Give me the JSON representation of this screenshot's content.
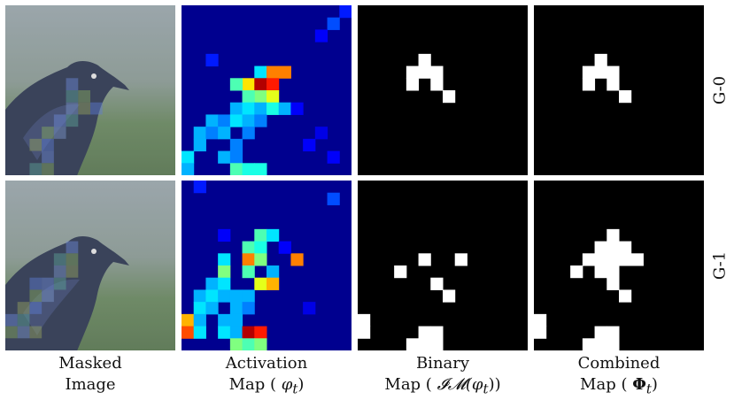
{
  "captions": [
    {
      "line1": "Masked",
      "line2": "Image"
    },
    {
      "line1": "Activation",
      "line2_prefix": "Map (",
      "symbol": "φ",
      "sub": "t",
      "line2_suffix": ")"
    },
    {
      "line1": "Binary",
      "line2_prefix": "Map (",
      "symbol": "𝓘𝓜(φ",
      "sub": "t",
      "line2_suffix": "))"
    },
    {
      "line1": "Combined",
      "line2_prefix": "Map (",
      "symbol": "Φ",
      "sub": "t",
      "line2_suffix": ")"
    }
  ],
  "rows": [
    {
      "label": "G-0",
      "overlay": [
        [
          5,
          6
        ],
        [
          5,
          7
        ],
        [
          6,
          7
        ],
        [
          5,
          8
        ],
        [
          6,
          8
        ],
        [
          7,
          8
        ],
        [
          4,
          9
        ],
        [
          5,
          9
        ],
        [
          3,
          10
        ],
        [
          4,
          10
        ],
        [
          2,
          11
        ],
        [
          3,
          11
        ],
        [
          3,
          12
        ],
        [
          2,
          13
        ],
        [
          3,
          13
        ]
      ],
      "activation": [
        [
          13,
          0,
          0.15
        ],
        [
          12,
          1,
          0.2
        ],
        [
          2,
          4,
          0.15
        ],
        [
          11,
          2,
          0.12
        ],
        [
          6,
          5,
          0.35
        ],
        [
          7,
          5,
          0.75
        ],
        [
          8,
          5,
          0.75
        ],
        [
          5,
          6,
          0.65
        ],
        [
          6,
          6,
          0.95
        ],
        [
          7,
          6,
          0.85
        ],
        [
          4,
          6,
          0.45
        ],
        [
          6,
          7,
          0.5
        ],
        [
          7,
          7,
          0.6
        ],
        [
          5,
          7,
          0.45
        ],
        [
          4,
          8,
          0.3
        ],
        [
          5,
          8,
          0.35
        ],
        [
          6,
          8,
          0.3
        ],
        [
          7,
          8,
          0.4
        ],
        [
          8,
          8,
          0.3
        ],
        [
          2,
          9,
          0.3
        ],
        [
          3,
          9,
          0.25
        ],
        [
          4,
          9,
          0.35
        ],
        [
          5,
          9,
          0.3
        ],
        [
          6,
          9,
          0.25
        ],
        [
          1,
          10,
          0.3
        ],
        [
          2,
          10,
          0.25
        ],
        [
          3,
          10,
          0.3
        ],
        [
          5,
          10,
          0.25
        ],
        [
          1,
          11,
          0.3
        ],
        [
          4,
          11,
          0.25
        ],
        [
          0,
          12,
          0.35
        ],
        [
          3,
          12,
          0.3
        ],
        [
          4,
          12,
          0.25
        ],
        [
          0,
          13,
          0.3
        ],
        [
          4,
          13,
          0.45
        ],
        [
          5,
          13,
          0.4
        ],
        [
          6,
          13,
          0.4
        ],
        [
          9,
          8,
          0.12
        ],
        [
          10,
          11,
          0.12
        ],
        [
          12,
          12,
          0.12
        ],
        [
          11,
          10,
          0.1
        ]
      ],
      "binary": [
        [
          5,
          4
        ],
        [
          4,
          5
        ],
        [
          5,
          5
        ],
        [
          6,
          5
        ],
        [
          4,
          6
        ],
        [
          6,
          6
        ],
        [
          7,
          7
        ]
      ],
      "combined": [
        [
          5,
          4
        ],
        [
          4,
          5
        ],
        [
          5,
          5
        ],
        [
          6,
          5
        ],
        [
          4,
          6
        ],
        [
          6,
          6
        ],
        [
          7,
          7
        ]
      ]
    },
    {
      "label": "G-1",
      "overlay": [
        [
          5,
          5
        ],
        [
          4,
          6
        ],
        [
          5,
          6
        ],
        [
          4,
          7
        ],
        [
          5,
          7
        ],
        [
          2,
          8
        ],
        [
          3,
          8
        ],
        [
          4,
          8
        ],
        [
          2,
          9
        ],
        [
          3,
          9
        ],
        [
          1,
          10
        ],
        [
          2,
          10
        ],
        [
          0,
          11
        ],
        [
          1,
          11
        ],
        [
          0,
          12
        ],
        [
          1,
          12
        ],
        [
          2,
          12
        ]
      ],
      "activation": [
        [
          1,
          0,
          0.15
        ],
        [
          12,
          1,
          0.2
        ],
        [
          3,
          4,
          0.12
        ],
        [
          6,
          4,
          0.45
        ],
        [
          7,
          4,
          0.35
        ],
        [
          5,
          5,
          0.45
        ],
        [
          6,
          5,
          0.4
        ],
        [
          3,
          6,
          0.35
        ],
        [
          5,
          6,
          0.75
        ],
        [
          6,
          6,
          0.5
        ],
        [
          9,
          6,
          0.75
        ],
        [
          3,
          7,
          0.5
        ],
        [
          5,
          7,
          0.45
        ],
        [
          7,
          7,
          0.3
        ],
        [
          2,
          8,
          0.3
        ],
        [
          3,
          8,
          0.35
        ],
        [
          6,
          8,
          0.6
        ],
        [
          7,
          8,
          0.7
        ],
        [
          1,
          9,
          0.3
        ],
        [
          2,
          9,
          0.35
        ],
        [
          3,
          9,
          0.3
        ],
        [
          4,
          9,
          0.3
        ],
        [
          5,
          9,
          0.3
        ],
        [
          1,
          10,
          0.35
        ],
        [
          2,
          10,
          0.3
        ],
        [
          4,
          10,
          0.3
        ],
        [
          5,
          10,
          0.25
        ],
        [
          0,
          11,
          0.7
        ],
        [
          1,
          11,
          0.3
        ],
        [
          3,
          11,
          0.3
        ],
        [
          4,
          11,
          0.3
        ],
        [
          0,
          12,
          0.8
        ],
        [
          1,
          12,
          0.35
        ],
        [
          3,
          12,
          0.35
        ],
        [
          4,
          12,
          0.3
        ],
        [
          5,
          12,
          0.95
        ],
        [
          6,
          12,
          0.85
        ],
        [
          4,
          13,
          0.5
        ],
        [
          5,
          13,
          0.45
        ],
        [
          6,
          13,
          0.5
        ],
        [
          8,
          5,
          0.12
        ],
        [
          10,
          10,
          0.1
        ]
      ],
      "binary": [
        [
          5,
          6
        ],
        [
          3,
          7
        ],
        [
          6,
          8
        ],
        [
          7,
          9
        ],
        [
          0,
          11
        ],
        [
          0,
          12
        ],
        [
          5,
          12
        ],
        [
          6,
          12
        ],
        [
          5,
          13
        ],
        [
          6,
          13
        ],
        [
          4,
          13
        ],
        [
          8,
          6
        ]
      ],
      "combined": [
        [
          6,
          4
        ],
        [
          5,
          5
        ],
        [
          6,
          5
        ],
        [
          7,
          5
        ],
        [
          4,
          6
        ],
        [
          5,
          6
        ],
        [
          6,
          6
        ],
        [
          3,
          7
        ],
        [
          5,
          7
        ],
        [
          6,
          7
        ],
        [
          7,
          6
        ],
        [
          8,
          6
        ],
        [
          6,
          8
        ],
        [
          7,
          9
        ],
        [
          0,
          11
        ],
        [
          0,
          12
        ],
        [
          5,
          12
        ],
        [
          6,
          12
        ],
        [
          4,
          13
        ],
        [
          5,
          13
        ],
        [
          6,
          13
        ]
      ]
    }
  ]
}
